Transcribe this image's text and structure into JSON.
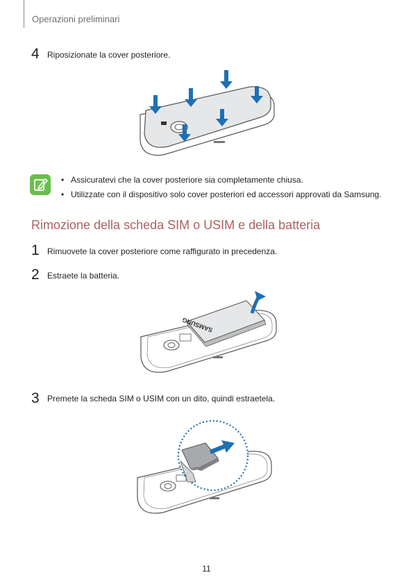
{
  "header": {
    "section": "Operazioni preliminari"
  },
  "step_cover": {
    "number": "4",
    "text": "Riposizionate la cover posteriore."
  },
  "note": {
    "items": [
      "Assicuratevi che la cover posteriore sia completamente chiusa.",
      "Utilizzate con il dispositivo solo cover posteriori ed accessori approvati da Samsung."
    ]
  },
  "section": {
    "title": "Rimozione della scheda SIM o USIM e della batteria"
  },
  "steps": [
    {
      "number": "1",
      "text": "Rimuovete la cover posteriore come raffigurato in precedenza."
    },
    {
      "number": "2",
      "text": "Estraete la batteria."
    },
    {
      "number": "3",
      "text": "Premete la scheda SIM o USIM con un dito, quindi estraetela."
    }
  ],
  "battery": {
    "brand": "SAMSUNG"
  },
  "colors": {
    "arrow": "#1f6fb4",
    "note_icon": "#6abf4b",
    "title": "#b0615f"
  },
  "icons": {
    "note": "note-pencil-icon"
  },
  "footer": {
    "page_number": "11"
  }
}
